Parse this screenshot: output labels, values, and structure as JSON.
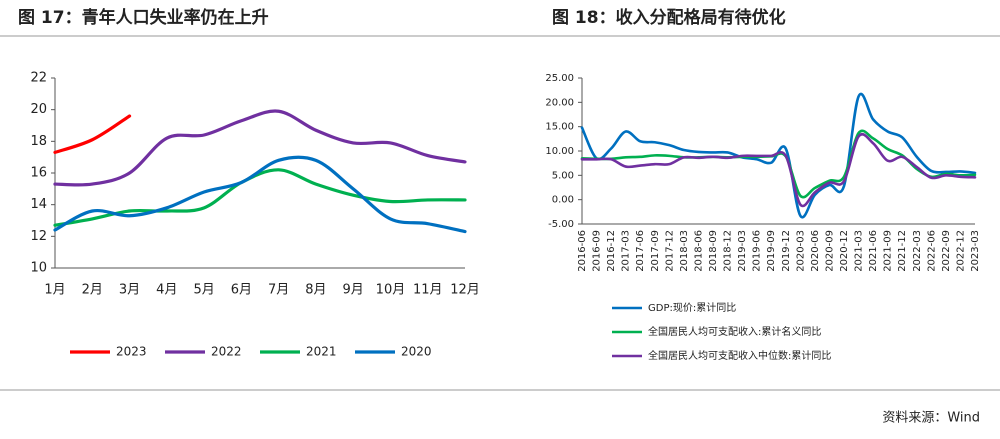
{
  "chart_data": [
    {
      "type": "line",
      "title": "图 17：青年人口失业率仍在上升",
      "categories": [
        "1月",
        "2月",
        "3月",
        "4月",
        "5月",
        "6月",
        "7月",
        "8月",
        "9月",
        "10月",
        "11月",
        "12月"
      ],
      "ylim": [
        10,
        22
      ],
      "yticks": [
        10,
        12,
        14,
        16,
        18,
        20,
        22
      ],
      "legend": "bottom",
      "series": [
        {
          "name": "2023",
          "color": "#ff0000",
          "values": [
            17.3,
            18.1,
            19.6,
            null,
            null,
            null,
            null,
            null,
            null,
            null,
            null,
            null
          ]
        },
        {
          "name": "2022",
          "color": "#7030a0",
          "values": [
            15.3,
            15.3,
            16.0,
            18.2,
            18.4,
            19.3,
            19.9,
            18.7,
            17.9,
            17.9,
            17.1,
            16.7
          ]
        },
        {
          "name": "2021",
          "color": "#00b050",
          "values": [
            12.7,
            13.1,
            13.6,
            13.6,
            13.8,
            15.4,
            16.2,
            15.3,
            14.6,
            14.2,
            14.3,
            14.3
          ]
        },
        {
          "name": "2020",
          "color": "#0070c0",
          "values": [
            12.4,
            13.6,
            13.3,
            13.8,
            14.8,
            15.4,
            16.8,
            16.8,
            15.0,
            13.1,
            12.8,
            12.3
          ]
        }
      ]
    },
    {
      "type": "line",
      "title": "图 18：收入分配格局有待优化",
      "categories": [
        "2016-06",
        "2016-09",
        "2016-12",
        "2017-03",
        "2017-06",
        "2017-09",
        "2017-12",
        "2018-03",
        "2018-06",
        "2018-09",
        "2018-12",
        "2019-03",
        "2019-06",
        "2019-09",
        "2019-12",
        "2020-03",
        "2020-06",
        "2020-09",
        "2020-12",
        "2021-03",
        "2021-06",
        "2021-09",
        "2021-12",
        "2022-03",
        "2022-06",
        "2022-09",
        "2022-12",
        "2023-03"
      ],
      "ylim": [
        -5,
        25
      ],
      "yticks": [
        {
          "value": -5,
          "label": "-5.00"
        },
        {
          "value": 0,
          "label": "0.00"
        },
        {
          "value": 5,
          "label": "5.00"
        },
        {
          "value": 10,
          "label": "10.00"
        },
        {
          "value": 15,
          "label": "15.00"
        },
        {
          "value": 20,
          "label": "20.00"
        },
        {
          "value": 25,
          "label": "25.00"
        }
      ],
      "legend": "bottom",
      "series": [
        {
          "name": "GDP:现价:累计同比",
          "color": "#0070c0",
          "values": [
            14.8,
            8.5,
            10.5,
            14.0,
            12.0,
            11.8,
            11.2,
            10.2,
            9.8,
            9.7,
            9.7,
            8.7,
            8.3,
            7.6,
            10.5,
            -3.3,
            1.0,
            3.0,
            2.8,
            21.2,
            16.5,
            14.0,
            12.8,
            8.8,
            5.9,
            5.7,
            5.8,
            5.5
          ]
        },
        {
          "name": "全国居民人均可支配收入:累计名义同比",
          "color": "#00b050",
          "values": [
            8.5,
            8.4,
            8.4,
            8.7,
            8.8,
            9.1,
            9.0,
            8.7,
            8.7,
            8.8,
            8.7,
            8.8,
            8.8,
            8.9,
            8.9,
            0.8,
            2.4,
            3.9,
            4.7,
            13.7,
            12.6,
            10.4,
            9.1,
            6.3,
            4.7,
            5.3,
            5.0,
            5.1
          ]
        },
        {
          "name": "全国居民人均可支配收入中位数:累计同比",
          "color": "#7030a0",
          "values": [
            8.3,
            8.3,
            8.3,
            6.8,
            7.0,
            7.3,
            7.3,
            8.7,
            8.6,
            8.8,
            8.6,
            9.0,
            9.0,
            9.0,
            9.0,
            -1.0,
            1.5,
            3.5,
            3.8,
            13.0,
            11.6,
            8.0,
            8.8,
            6.7,
            4.5,
            5.0,
            4.7,
            4.6
          ]
        }
      ]
    }
  ],
  "source": "资料来源：Wind"
}
